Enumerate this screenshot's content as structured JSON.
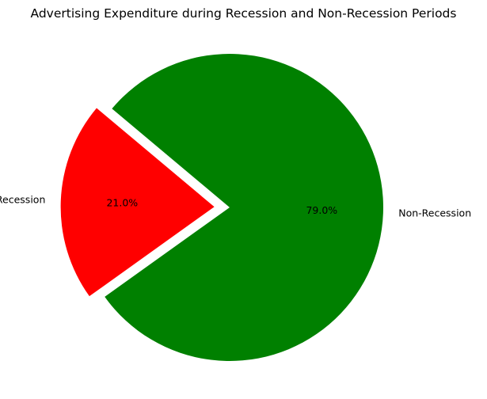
{
  "chart_data": {
    "type": "pie",
    "title": "Advertising Expenditure during Recession and Non-Recession Periods",
    "categories": [
      "Recession",
      "Non-Recession"
    ],
    "values": [
      21.0,
      79.0
    ],
    "percent_labels": [
      "21.0%",
      "79.0%"
    ],
    "colors": [
      "#ff0000",
      "#008000"
    ],
    "explode": [
      0.1,
      0
    ],
    "start_angle": 140,
    "direction": "counterclockwise"
  }
}
